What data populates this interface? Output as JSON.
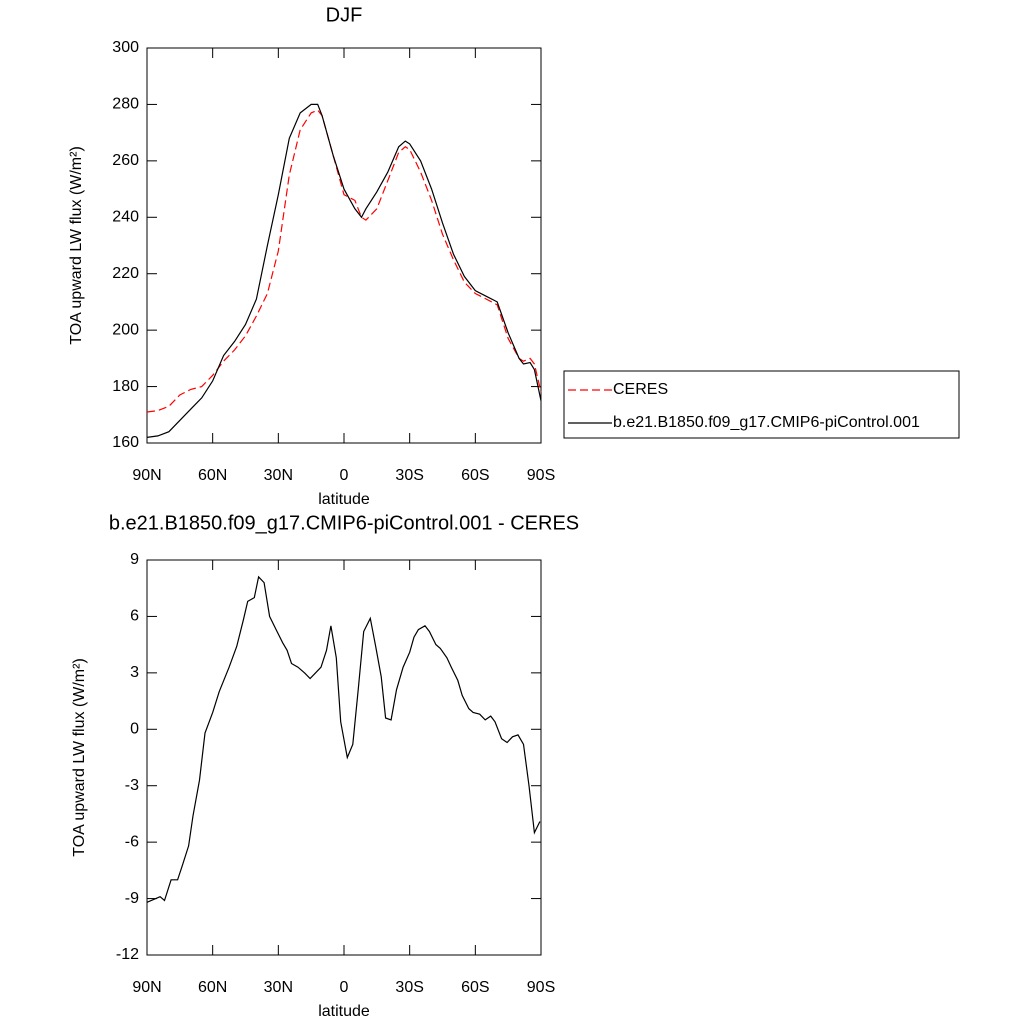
{
  "chart_data": [
    {
      "type": "line",
      "title": "DJF",
      "xlabel": "latitude",
      "ylabel": "TOA upward LW flux (W/m²)",
      "x": [
        90,
        85,
        80,
        75,
        70,
        65,
        60,
        55,
        50,
        45,
        40,
        35,
        30,
        25,
        20,
        15,
        12,
        10,
        5,
        0,
        -5,
        -8,
        -10,
        -15,
        -20,
        -25,
        -28,
        -30,
        -35,
        -40,
        -45,
        -50,
        -55,
        -60,
        -65,
        -70,
        -75,
        -80,
        -82,
        -85,
        -87,
        -90
      ],
      "series": [
        {
          "name": "CERES",
          "color": "#ff0000",
          "dash": true,
          "values": [
            171,
            171.5,
            173,
            177,
            179,
            180,
            184,
            189,
            193,
            198,
            205,
            213,
            228,
            255,
            271,
            277,
            278,
            276,
            262,
            248,
            246,
            240,
            239,
            243,
            253,
            263,
            265,
            264,
            256,
            246,
            234,
            225,
            217,
            213,
            211,
            209,
            197,
            190,
            189,
            190,
            188,
            178
          ]
        },
        {
          "name": "b.e21.B1850.f09_g17.CMIP6-piControl.001",
          "color": "#000000",
          "dash": false,
          "values": [
            162,
            162.5,
            164,
            168,
            172,
            176,
            182,
            191,
            196,
            202,
            211,
            230,
            248,
            268,
            277,
            280,
            280,
            276,
            262,
            250,
            243,
            240,
            243,
            249,
            256,
            265,
            267,
            266,
            260,
            250,
            238,
            227,
            219,
            214,
            212,
            210,
            199,
            190,
            188,
            188.5,
            186,
            175
          ]
        }
      ],
      "xlim": [
        90,
        -90
      ],
      "xticks": [
        {
          "value": 90,
          "label": "90N"
        },
        {
          "value": 60,
          "label": "60N"
        },
        {
          "value": 30,
          "label": "30N"
        },
        0,
        {
          "value": -30,
          "label": "30S"
        },
        {
          "value": -60,
          "label": "60S"
        },
        {
          "value": -90,
          "label": "90S"
        }
      ],
      "ylim": [
        160,
        300
      ],
      "yticks": [
        160,
        180,
        200,
        220,
        240,
        260,
        280,
        300
      ],
      "legend": "right"
    },
    {
      "type": "line",
      "title": "b.e21.B1850.f09_g17.CMIP6-piControl.001 - CERES",
      "xlabel": "latitude",
      "ylabel": "TOA upward LW flux (W/m²)",
      "x": [
        90,
        84,
        82,
        79,
        76,
        74,
        71,
        69,
        66,
        63.5,
        60,
        57,
        52.5,
        49,
        46,
        44,
        41,
        39,
        36.5,
        34,
        31,
        28,
        26,
        24,
        21,
        18,
        15.5,
        13,
        10.5,
        8,
        6,
        3.5,
        1.5,
        -1.5,
        -4,
        -6.5,
        -9,
        -12,
        -14.5,
        -17,
        -19,
        -21.5,
        -24,
        -27,
        -30,
        -32,
        -34,
        -37,
        -39,
        -42,
        -44,
        -47,
        -49,
        -52,
        -54,
        -57,
        -59,
        -62,
        -64.5,
        -67,
        -69,
        -72,
        -74.5,
        -77,
        -79.5,
        -82,
        -84.5,
        -87,
        -89.5
      ],
      "series": [
        {
          "name": null,
          "color": "#000000",
          "dash": false,
          "values": [
            -9.2,
            -8.9,
            -9.1,
            -8.0,
            -8.0,
            -7.3,
            -6.2,
            -4.6,
            -2.7,
            -0.2,
            0.9,
            2.0,
            3.3,
            4.4,
            5.8,
            6.8,
            7.0,
            8.1,
            7.8,
            6.0,
            5.3,
            4.6,
            4.2,
            3.5,
            3.3,
            3.0,
            2.7,
            3.0,
            3.3,
            4.2,
            5.5,
            3.8,
            0.4,
            -1.5,
            -0.8,
            2.1,
            5.2,
            5.9,
            4.4,
            2.8,
            0.6,
            0.5,
            2.1,
            3.3,
            4.1,
            4.9,
            5.3,
            5.5,
            5.2,
            4.5,
            4.3,
            3.8,
            3.3,
            2.6,
            1.8,
            1.1,
            0.9,
            0.8,
            0.5,
            0.7,
            0.4,
            -0.5,
            -0.7,
            -0.4,
            -0.3,
            -0.8,
            -3.0,
            -5.5,
            -4.9
          ]
        }
      ],
      "xlim": [
        90,
        -90
      ],
      "xticks": [
        {
          "value": 90,
          "label": "90N"
        },
        {
          "value": 60,
          "label": "60N"
        },
        {
          "value": 30,
          "label": "30N"
        },
        0,
        {
          "value": -30,
          "label": "30S"
        },
        {
          "value": -60,
          "label": "60S"
        },
        {
          "value": -90,
          "label": "90S"
        }
      ],
      "ylim": [
        -12,
        9
      ],
      "yticks": [
        -12,
        -9,
        -6,
        -3,
        0,
        3,
        6,
        9
      ]
    }
  ]
}
